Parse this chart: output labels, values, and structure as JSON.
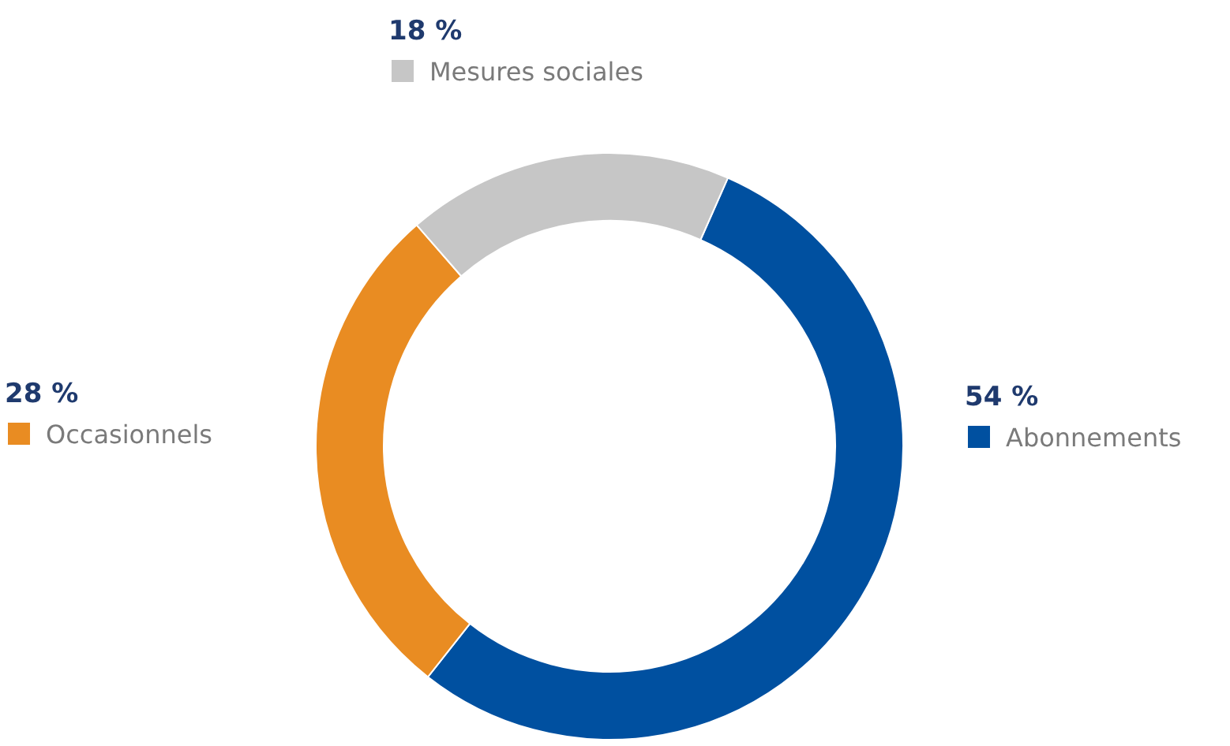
{
  "chart_data": {
    "type": "donut",
    "categories": [
      "Abonnements",
      "Occasionnels",
      "Mesures sociales"
    ],
    "values": [
      54,
      28,
      18
    ],
    "colors": [
      "#0050a0",
      "#e98c22",
      "#c6c6c6"
    ],
    "value_labels": [
      "54 %",
      "28 %",
      "18 %"
    ],
    "legend": "right"
  }
}
